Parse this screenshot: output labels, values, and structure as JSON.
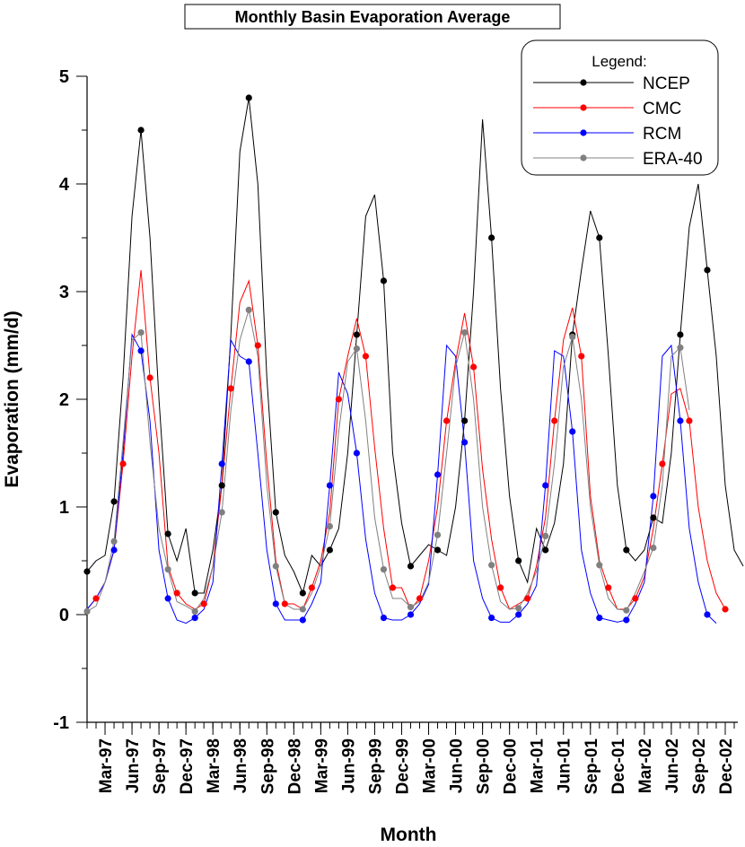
{
  "chart_data": {
    "type": "line",
    "title": "Monthly Basin Evaporation Average",
    "xlabel": "Month",
    "ylabel": "Evaporation (mm/d)",
    "ylim": [
      -1,
      5
    ],
    "yticks": [
      -1,
      0,
      1,
      2,
      3,
      4,
      5
    ],
    "x_start_month": "Jan-97",
    "x_tick_labels": [
      "Mar-97",
      "Jun-97",
      "Sep-97",
      "Dec-97",
      "Mar-98",
      "Jun-98",
      "Sep-98",
      "Dec-98",
      "Mar-99",
      "Jun-99",
      "Sep-99",
      "Dec-99",
      "Mar-00",
      "Jun-00",
      "Sep-00",
      "Dec-00",
      "Mar-01",
      "Jun-01",
      "Sep-01",
      "Dec-01",
      "Mar-02",
      "Jun-02",
      "Sep-02",
      "Dec-02"
    ],
    "legend_title": "Legend:",
    "legend_position": "top-right",
    "grid": false,
    "series": [
      {
        "name": "NCEP",
        "color": "#000000",
        "values": [
          0.4,
          0.5,
          0.55,
          1.05,
          2.2,
          3.7,
          4.5,
          3.5,
          2.0,
          0.75,
          0.5,
          0.8,
          0.2,
          0.2,
          0.6,
          1.2,
          2.6,
          4.3,
          4.8,
          4.0,
          2.2,
          0.95,
          0.55,
          0.4,
          0.2,
          0.55,
          0.45,
          0.6,
          0.8,
          1.5,
          2.6,
          3.7,
          3.9,
          3.1,
          1.5,
          0.85,
          0.45,
          0.55,
          0.65,
          0.6,
          0.55,
          1.0,
          1.8,
          3.0,
          4.6,
          3.5,
          2.1,
          1.1,
          0.5,
          0.3,
          0.8,
          0.6,
          0.85,
          1.4,
          2.6,
          3.2,
          3.75,
          3.5,
          2.4,
          1.2,
          0.6,
          0.5,
          0.6,
          0.9,
          0.85,
          1.5,
          2.6,
          3.6,
          4.0,
          3.2,
          2.4,
          1.2,
          0.6,
          0.45
        ]
      },
      {
        "name": "CMC",
        "color": "#ff0000",
        "values": [
          0.05,
          0.15,
          0.3,
          0.6,
          1.4,
          2.4,
          3.2,
          2.2,
          1.5,
          0.45,
          0.2,
          0.1,
          0.05,
          0.1,
          0.45,
          1.2,
          2.1,
          2.9,
          3.1,
          2.5,
          1.4,
          0.5,
          0.1,
          0.1,
          0.05,
          0.25,
          0.5,
          0.95,
          2.0,
          2.4,
          2.75,
          2.4,
          1.55,
          0.8,
          0.25,
          0.25,
          0.05,
          0.15,
          0.5,
          1.0,
          1.8,
          2.35,
          2.8,
          2.3,
          1.35,
          0.7,
          0.25,
          0.05,
          0.1,
          0.15,
          0.45,
          0.9,
          1.8,
          2.55,
          2.85,
          2.4,
          1.1,
          0.5,
          0.25,
          0.05,
          0.05,
          0.15,
          0.35,
          0.8,
          1.4,
          2.05,
          2.1,
          1.8,
          1.0,
          0.5,
          0.2,
          0.05
        ]
      },
      {
        "name": "RCM",
        "color": "#0000ff",
        "values": [
          0.05,
          0.15,
          0.3,
          0.6,
          1.5,
          2.6,
          2.45,
          1.8,
          0.6,
          0.15,
          -0.05,
          -0.08,
          -0.03,
          0.05,
          0.3,
          1.4,
          2.55,
          2.4,
          2.35,
          1.5,
          0.6,
          0.1,
          -0.05,
          -0.05,
          -0.05,
          0.1,
          0.3,
          1.2,
          2.25,
          2.05,
          1.5,
          0.7,
          0.2,
          -0.03,
          -0.05,
          -0.05,
          0.0,
          0.1,
          0.28,
          1.3,
          2.5,
          2.4,
          1.6,
          0.5,
          0.15,
          -0.03,
          -0.07,
          -0.07,
          0.0,
          0.1,
          0.27,
          1.2,
          2.45,
          2.4,
          1.7,
          0.6,
          0.2,
          -0.03,
          -0.05,
          -0.07,
          -0.05,
          0.1,
          0.3,
          1.1,
          2.4,
          2.5,
          1.8,
          0.8,
          0.3,
          0.0,
          -0.08
        ]
      },
      {
        "name": "ERA-40",
        "color": "#808080",
        "values": [
          0.03,
          0.08,
          0.3,
          0.68,
          1.6,
          2.55,
          2.62,
          1.6,
          0.8,
          0.42,
          0.12,
          0.08,
          0.03,
          0.15,
          0.45,
          0.95,
          1.9,
          2.55,
          2.83,
          2.4,
          1.2,
          0.45,
          0.1,
          0.05,
          0.05,
          0.2,
          0.45,
          0.82,
          1.7,
          2.35,
          2.47,
          1.8,
          0.9,
          0.42,
          0.15,
          0.15,
          0.07,
          0.12,
          0.3,
          0.74,
          1.5,
          2.3,
          2.62,
          2.0,
          1.0,
          0.46,
          0.12,
          0.05,
          0.06,
          0.2,
          0.4,
          0.73,
          1.4,
          2.3,
          2.58,
          2.0,
          1.0,
          0.46,
          0.15,
          0.05,
          0.04,
          0.2,
          0.4,
          0.62,
          1.2,
          2.4,
          2.48,
          1.9
        ]
      }
    ]
  }
}
